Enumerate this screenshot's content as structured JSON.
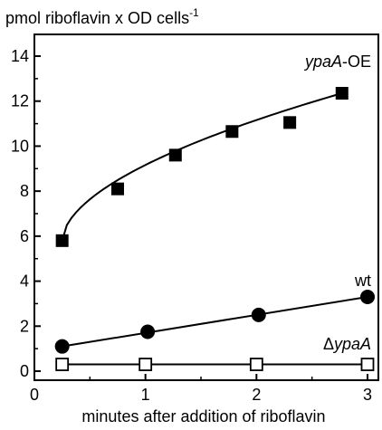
{
  "chart_data": {
    "type": "line",
    "title": "",
    "xlabel": "minutes after addition of riboflavin",
    "ylabel_main": "pmol riboflavin x OD cells",
    "ylabel_exp": "-1",
    "xlim": [
      0,
      3.1
    ],
    "ylim": [
      0,
      15
    ],
    "xticks": [
      0,
      1,
      2,
      3
    ],
    "yticks": [
      0,
      2,
      4,
      6,
      8,
      10,
      12,
      14
    ],
    "grid": false,
    "series": [
      {
        "name_prefix": "",
        "name_italic": "ypaA",
        "name_suffix": "-OE",
        "marker": "square-filled",
        "x": [
          0.25,
          0.75,
          1.27,
          1.78,
          2.3,
          2.77
        ],
        "y": [
          5.8,
          8.1,
          9.6,
          10.65,
          11.05,
          12.35
        ]
      },
      {
        "name_prefix": "",
        "name_italic": "",
        "name_suffix": "wt",
        "marker": "circle-filled",
        "x": [
          0.25,
          1.02,
          2.02,
          3.0
        ],
        "y": [
          1.1,
          1.75,
          2.5,
          3.3
        ]
      },
      {
        "name_prefix": "Δ",
        "name_italic": "ypaA",
        "name_suffix": "",
        "marker": "square-open",
        "x": [
          0.25,
          1.0,
          2.0,
          3.0
        ],
        "y": [
          0.3,
          0.3,
          0.3,
          0.3
        ]
      }
    ]
  }
}
